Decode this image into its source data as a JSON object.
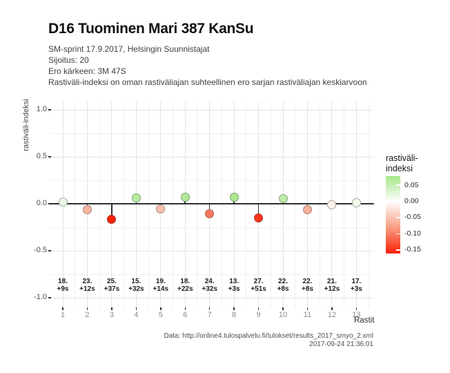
{
  "header": {
    "title": "D16 Tuominen Mari 387 KanSu",
    "subtitle_lines": [
      "SM-sprint 17.9.2017, Helsingin Suunnistajat",
      "Sijoitus: 20",
      "Ero kärkeen: 3M 47S",
      "Rastiväli-indeksi on oman rastiväliajan suhteellinen ero sarjan rastiväliajan keskiarvoon"
    ]
  },
  "chart_data": {
    "type": "scatter",
    "title": "",
    "xlabel": "Rastit",
    "ylabel": "rastiväli-indeksi",
    "x": [
      1,
      2,
      3,
      4,
      5,
      6,
      7,
      8,
      9,
      10,
      11,
      12,
      13
    ],
    "values": [
      0.018,
      -0.062,
      -0.165,
      0.062,
      -0.052,
      0.068,
      -0.104,
      0.072,
      -0.148,
      0.058,
      -0.065,
      -0.012,
      0.013
    ],
    "point_labels": [
      {
        "place": "18.",
        "diff": "+9s"
      },
      {
        "place": "23.",
        "diff": "+12s"
      },
      {
        "place": "25.",
        "diff": "+37s"
      },
      {
        "place": "15.",
        "diff": "+32s"
      },
      {
        "place": "19.",
        "diff": "+14s"
      },
      {
        "place": "18.",
        "diff": "+22s"
      },
      {
        "place": "24.",
        "diff": "+32s"
      },
      {
        "place": "13.",
        "diff": "+3s"
      },
      {
        "place": "27.",
        "diff": "+51s"
      },
      {
        "place": "22.",
        "diff": "+8s"
      },
      {
        "place": "22.",
        "diff": "+8s"
      },
      {
        "place": "21.",
        "diff": "+12s"
      },
      {
        "place": "17.",
        "diff": "+3s"
      }
    ],
    "xticks": [
      "1",
      "2",
      "3",
      "4",
      "5",
      "6",
      "7",
      "8",
      "9",
      "10",
      "11",
      "12",
      "13"
    ],
    "yticks": [
      "1.0",
      "0.5",
      "0.0",
      "-0.5",
      "-1.0"
    ],
    "ytick_values": [
      1,
      0.5,
      0,
      -0.5,
      -1
    ],
    "ylim": [
      -1.1,
      1.1
    ],
    "grid": true,
    "zero_line": true,
    "legend": {
      "position": "right",
      "title_lines": [
        "rastiväli-",
        "indeksi"
      ],
      "tick_labels": [
        "0.05",
        "0.00",
        "-0.05",
        "-0.10",
        "-0.15"
      ],
      "tick_values": [
        0.05,
        0,
        -0.05,
        -0.1,
        -0.15
      ]
    },
    "colormap": {
      "max_value": 0.078,
      "min_value": -0.161,
      "green": "#a5e687",
      "white": "#ffffff",
      "salmon": "#f79e82",
      "red": "#fa2008"
    }
  },
  "footer": {
    "source": "Data: http://online4.tulospalvelu.fi/tulokset/results_2017_smyo_2.xml",
    "timestamp": "2017-09-24 21:36:01"
  }
}
